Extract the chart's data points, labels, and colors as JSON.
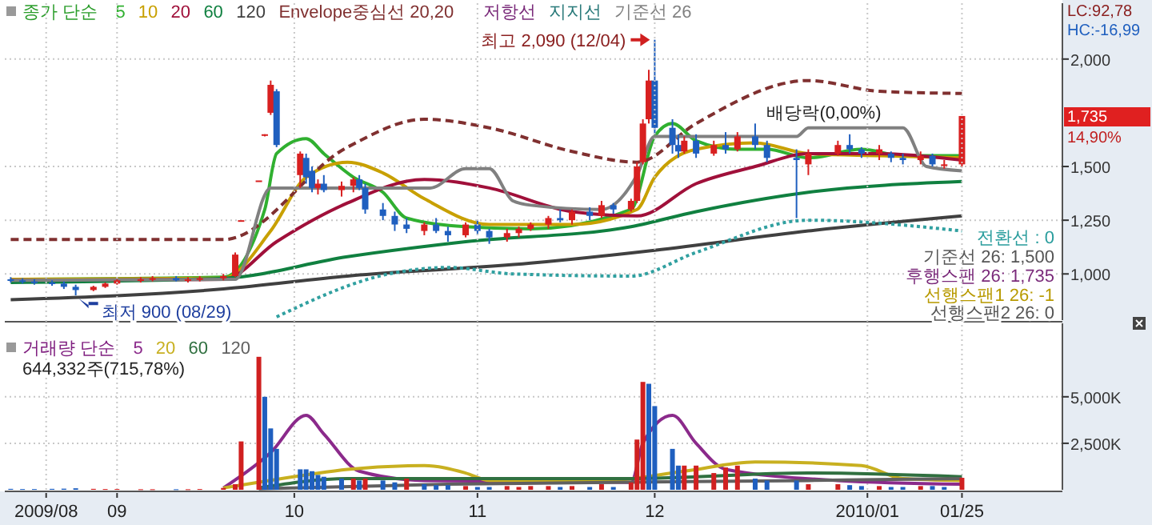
{
  "chart_data": [
    {
      "type": "candlestick",
      "legend_title": "종가 단순",
      "legend": "top left",
      "grid": "y",
      "tick_labels": "y",
      "xlim": [
        "2009-08-16",
        "2010-02-11"
      ],
      "ylim": [
        785,
        2260
      ],
      "yticks": [
        {
          "value": 1000,
          "label": "1,000"
        },
        {
          "value": 1250,
          "label": "1,250"
        },
        {
          "value": 1500,
          "label": "1,500"
        },
        {
          "value": 2000,
          "label": "2,000"
        }
      ],
      "x": [
        "2009-08-17",
        "2009-08-19",
        "2009-08-21",
        "2009-08-24",
        "2009-08-26",
        "2009-08-28",
        "2009-08-31",
        "2009-09-02",
        "2009-09-04",
        "2009-09-08",
        "2009-09-10",
        "2009-09-14",
        "2009-09-16",
        "2009-09-18",
        "2009-09-22",
        "2009-09-24",
        "2009-09-25",
        "2009-09-28",
        "2009-09-29",
        "2009-09-30",
        "2009-10-01",
        "2009-10-05",
        "2009-10-06",
        "2009-10-07",
        "2009-10-08",
        "2009-10-09",
        "2009-10-12",
        "2009-10-14",
        "2009-10-15",
        "2009-10-16",
        "2009-10-19",
        "2009-10-21",
        "2009-10-23",
        "2009-10-26",
        "2009-10-28",
        "2009-10-30",
        "2009-11-02",
        "2009-11-04",
        "2009-11-06",
        "2009-11-09",
        "2009-11-11",
        "2009-11-13",
        "2009-11-16",
        "2009-11-18",
        "2009-11-20",
        "2009-11-23",
        "2009-11-25",
        "2009-11-27",
        "2009-11-30",
        "2009-12-01",
        "2009-12-02",
        "2009-12-03",
        "2009-12-04",
        "2009-12-07",
        "2009-12-08",
        "2009-12-09",
        "2009-12-11",
        "2009-12-14",
        "2009-12-16",
        "2009-12-18",
        "2009-12-21",
        "2009-12-23",
        "2009-12-28",
        "2009-12-30",
        "2010-01-04",
        "2010-01-06",
        "2010-01-08",
        "2010-01-11",
        "2010-01-13",
        "2010-01-15",
        "2010-01-18",
        "2010-01-20",
        "2010-01-22",
        "2010-01-25"
      ],
      "ohlc": [
        [
          975,
          985,
          960,
          970
        ],
        [
          970,
          980,
          955,
          965
        ],
        [
          965,
          975,
          950,
          960
        ],
        [
          960,
          970,
          945,
          955
        ],
        [
          955,
          965,
          930,
          940
        ],
        [
          940,
          950,
          900,
          925
        ],
        [
          925,
          945,
          920,
          940
        ],
        [
          940,
          960,
          935,
          955
        ],
        [
          955,
          975,
          950,
          970
        ],
        [
          970,
          985,
          960,
          975
        ],
        [
          975,
          990,
          965,
          980
        ],
        [
          980,
          990,
          965,
          970
        ],
        [
          970,
          985,
          960,
          975
        ],
        [
          975,
          990,
          965,
          980
        ],
        [
          980,
          1000,
          970,
          990
        ],
        [
          990,
          1100,
          985,
          1090
        ],
        [
          1250,
          1250,
          1250,
          1250
        ],
        [
          1435,
          1435,
          1435,
          1435
        ],
        [
          1650,
          1650,
          1640,
          1650
        ],
        [
          1750,
          1900,
          1740,
          1880
        ],
        [
          1850,
          1860,
          1590,
          1600
        ],
        [
          1460,
          1570,
          1400,
          1560
        ],
        [
          1540,
          1560,
          1420,
          1450
        ],
        [
          1480,
          1500,
          1380,
          1400
        ],
        [
          1400,
          1440,
          1370,
          1420
        ],
        [
          1420,
          1460,
          1380,
          1390
        ],
        [
          1390,
          1430,
          1360,
          1410
        ],
        [
          1410,
          1450,
          1380,
          1440
        ],
        [
          1440,
          1460,
          1390,
          1400
        ],
        [
          1400,
          1420,
          1280,
          1300
        ],
        [
          1300,
          1330,
          1250,
          1270
        ],
        [
          1270,
          1290,
          1200,
          1230
        ],
        [
          1230,
          1260,
          1190,
          1210
        ],
        [
          1200,
          1240,
          1180,
          1230
        ],
        [
          1230,
          1260,
          1190,
          1200
        ],
        [
          1200,
          1220,
          1150,
          1180
        ],
        [
          1180,
          1240,
          1170,
          1230
        ],
        [
          1230,
          1250,
          1180,
          1200
        ],
        [
          1200,
          1210,
          1140,
          1170
        ],
        [
          1170,
          1210,
          1150,
          1190
        ],
        [
          1190,
          1220,
          1170,
          1210
        ],
        [
          1210,
          1240,
          1200,
          1230
        ],
        [
          1230,
          1270,
          1210,
          1260
        ],
        [
          1260,
          1300,
          1240,
          1250
        ],
        [
          1250,
          1300,
          1230,
          1290
        ],
        [
          1290,
          1310,
          1250,
          1270
        ],
        [
          1270,
          1340,
          1260,
          1320
        ],
        [
          1320,
          1330,
          1280,
          1300
        ],
        [
          1300,
          1350,
          1290,
          1340
        ],
        [
          1340,
          1520,
          1330,
          1500
        ],
        [
          1520,
          1720,
          1510,
          1700
        ],
        [
          1720,
          1950,
          1700,
          1900
        ],
        [
          1900,
          2090,
          1650,
          1680
        ],
        [
          1680,
          1720,
          1560,
          1600
        ],
        [
          1600,
          1650,
          1540,
          1570
        ],
        [
          1570,
          1640,
          1560,
          1620
        ],
        [
          1620,
          1650,
          1540,
          1560
        ],
        [
          1560,
          1620,
          1550,
          1600
        ],
        [
          1600,
          1660,
          1560,
          1580
        ],
        [
          1580,
          1660,
          1570,
          1640
        ],
        [
          1640,
          1700,
          1580,
          1600
        ],
        [
          1600,
          1620,
          1520,
          1540
        ],
        [
          1540,
          1580,
          1260,
          1530
        ],
        [
          1510,
          1580,
          1460,
          1560
        ],
        [
          1560,
          1620,
          1550,
          1600
        ],
        [
          1600,
          1650,
          1560,
          1580
        ],
        [
          1580,
          1590,
          1540,
          1560
        ],
        [
          1560,
          1600,
          1530,
          1580
        ],
        [
          1560,
          1570,
          1520,
          1540
        ],
        [
          1540,
          1560,
          1510,
          1530
        ],
        [
          1530,
          1570,
          1510,
          1550
        ],
        [
          1550,
          1560,
          1500,
          1510
        ],
        [
          1510,
          1530,
          1490,
          1510
        ],
        [
          1510,
          1735,
          1500,
          1735
        ]
      ],
      "series": [
        {
          "type": "line",
          "name": "5",
          "color": "#30b030",
          "x": [
            "2009-08-17",
            "2009-09-22",
            "2009-09-29",
            "2009-10-01",
            "2009-10-06",
            "2009-10-09",
            "2009-10-14",
            "2009-10-19",
            "2009-10-23",
            "2009-11-02",
            "2009-11-13",
            "2009-11-30",
            "2009-12-04",
            "2009-12-07",
            "2009-12-11",
            "2009-12-18",
            "2009-12-23",
            "2009-12-30",
            "2010-01-08",
            "2010-01-15",
            "2010-01-25"
          ],
          "values": [
            975,
            985,
            1300,
            1560,
            1630,
            1560,
            1450,
            1380,
            1260,
            1220,
            1210,
            1300,
            1640,
            1700,
            1620,
            1580,
            1580,
            1540,
            1580,
            1550,
            1550
          ]
        },
        {
          "type": "line",
          "name": "10",
          "color": "#c8a000",
          "x": [
            "2009-08-17",
            "2009-09-22",
            "2009-09-30",
            "2009-10-06",
            "2009-10-13",
            "2009-10-19",
            "2009-10-26",
            "2009-11-06",
            "2009-11-20",
            "2009-12-01",
            "2009-12-04",
            "2009-12-11",
            "2009-12-21",
            "2009-12-30",
            "2010-01-11",
            "2010-01-25"
          ],
          "values": [
            975,
            980,
            1200,
            1450,
            1520,
            1470,
            1350,
            1230,
            1230,
            1300,
            1450,
            1580,
            1610,
            1560,
            1550,
            1540
          ]
        },
        {
          "type": "line",
          "name": "20",
          "color": "#a0103a",
          "x": [
            "2009-08-17",
            "2009-09-22",
            "2009-10-01",
            "2009-10-13",
            "2009-10-26",
            "2009-11-06",
            "2009-11-20",
            "2009-12-01",
            "2009-12-11",
            "2009-12-21",
            "2009-12-30",
            "2010-01-11",
            "2010-01-25"
          ],
          "values": [
            970,
            975,
            1150,
            1330,
            1440,
            1400,
            1290,
            1270,
            1420,
            1500,
            1560,
            1560,
            1530
          ]
        },
        {
          "type": "line",
          "name": "60",
          "color": "#108040",
          "x": [
            "2009-08-17",
            "2009-09-22",
            "2009-10-13",
            "2009-11-02",
            "2009-11-30",
            "2009-12-11",
            "2009-12-30",
            "2010-01-25"
          ],
          "values": [
            960,
            980,
            1080,
            1150,
            1220,
            1290,
            1380,
            1430
          ]
        },
        {
          "type": "line",
          "name": "120",
          "color": "#404040",
          "x": [
            "2009-08-17",
            "2009-09-22",
            "2009-10-13",
            "2009-11-13",
            "2009-12-04",
            "2009-12-30",
            "2010-01-25"
          ],
          "values": [
            880,
            930,
            990,
            1050,
            1110,
            1200,
            1270
          ]
        },
        {
          "type": "line",
          "name": "Envelope중심선 20,20",
          "color": "#803030",
          "line_style": "dashed",
          "x": [
            "2009-08-17",
            "2009-09-22",
            "2009-10-13",
            "2009-10-26",
            "2009-11-06",
            "2009-11-20",
            "2009-12-01",
            "2009-12-11",
            "2009-12-30",
            "2010-01-11",
            "2010-01-25"
          ],
          "values": [
            1160,
            1160,
            1590,
            1720,
            1680,
            1570,
            1520,
            1700,
            1900,
            1850,
            1840
          ]
        },
        {
          "type": "line",
          "color": "#30a0a0",
          "line_style": "dotted",
          "x": [
            "2009-10-01",
            "2009-10-20",
            "2009-10-30",
            "2009-11-10",
            "2009-11-30",
            "2009-12-11",
            "2009-12-30",
            "2010-01-25"
          ],
          "values": [
            800,
            1000,
            1030,
            1000,
            990,
            1100,
            1250,
            1200
          ]
        },
        {
          "type": "line",
          "name": "기준선 26",
          "color": "#808080",
          "x": [
            "2009-08-17",
            "2009-09-24",
            "2009-09-30",
            "2009-10-27",
            "2009-11-02",
            "2009-11-06",
            "2009-11-10",
            "2009-11-13",
            "2009-11-25",
            "2009-12-01",
            "2009-12-04",
            "2009-12-28",
            "2009-12-30",
            "2010-01-15",
            "2010-01-19",
            "2010-01-25"
          ],
          "values": [
            970,
            975,
            1400,
            1400,
            1490,
            1490,
            1340,
            1320,
            1300,
            1460,
            1640,
            1640,
            1680,
            1680,
            1500,
            1480
          ]
        }
      ],
      "annotations": [
        {
          "text": "최고 2,090 (12/04)",
          "x": "2009-12-04",
          "y": 2090
        },
        {
          "text": "최저 900 (08/29)",
          "x": "2009-08-28",
          "y": 900
        },
        "배당락(0,00%)",
        "저항선",
        "지지선",
        "전환선 : 0",
        "기준선 26: 1,500",
        "후행스팬 26: 1,735",
        "선행스팬1 26: -1",
        "선행스팬2 26: 0",
        "LC:92,78",
        "HC:-16,99",
        "1,735",
        "14,90%"
      ]
    },
    {
      "type": "bar",
      "legend_title": "거래량 단순",
      "legend": "top left",
      "grid": true,
      "xlim": [
        "2009-08-16",
        "2010-02-11"
      ],
      "ylim": [
        0,
        8950
      ],
      "xticks": [
        {
          "value": "2009-08-23",
          "label": "2009/08"
        },
        {
          "value": "2009-09-04",
          "label": "09"
        },
        {
          "value": "2009-10-04",
          "label": "10"
        },
        {
          "value": "2009-11-04",
          "label": "11"
        },
        {
          "value": "2009-12-04",
          "label": "12"
        },
        {
          "value": "2010-01-09",
          "label": "2010/01"
        },
        {
          "value": "2010-01-25",
          "label": "01/25"
        }
      ],
      "yticks": [
        {
          "value": 2500,
          "label": "2,500K"
        },
        {
          "value": 5000,
          "label": "5,000K"
        }
      ],
      "x": [
        "2009-08-17",
        "2009-08-19",
        "2009-08-21",
        "2009-08-24",
        "2009-08-26",
        "2009-08-28",
        "2009-08-31",
        "2009-09-02",
        "2009-09-04",
        "2009-09-08",
        "2009-09-10",
        "2009-09-14",
        "2009-09-16",
        "2009-09-18",
        "2009-09-22",
        "2009-09-24",
        "2009-09-25",
        "2009-09-28",
        "2009-09-29",
        "2009-09-30",
        "2009-10-01",
        "2009-10-05",
        "2009-10-06",
        "2009-10-07",
        "2009-10-08",
        "2009-10-09",
        "2009-10-12",
        "2009-10-14",
        "2009-10-15",
        "2009-10-16",
        "2009-10-19",
        "2009-10-21",
        "2009-10-23",
        "2009-10-26",
        "2009-10-28",
        "2009-10-30",
        "2009-11-02",
        "2009-11-04",
        "2009-11-06",
        "2009-11-09",
        "2009-11-11",
        "2009-11-13",
        "2009-11-16",
        "2009-11-18",
        "2009-11-20",
        "2009-11-23",
        "2009-11-25",
        "2009-11-27",
        "2009-11-30",
        "2009-12-01",
        "2009-12-02",
        "2009-12-03",
        "2009-12-04",
        "2009-12-07",
        "2009-12-08",
        "2009-12-09",
        "2009-12-11",
        "2009-12-14",
        "2009-12-16",
        "2009-12-18",
        "2009-12-21",
        "2009-12-23",
        "2009-12-28",
        "2009-12-30",
        "2010-01-04",
        "2010-01-06",
        "2010-01-08",
        "2010-01-11",
        "2010-01-13",
        "2010-01-15",
        "2010-01-18",
        "2010-01-20",
        "2010-01-22",
        "2010-01-25"
      ],
      "series": [
        {
          "type": "bar",
          "values": [
            50,
            40,
            40,
            50,
            60,
            80,
            50,
            40,
            40,
            30,
            30,
            30,
            30,
            40,
            100,
            300,
            2600,
            7150,
            5000,
            3300,
            2200,
            1100,
            1100,
            1000,
            800,
            700,
            600,
            600,
            500,
            600,
            500,
            400,
            600,
            300,
            250,
            250,
            200,
            150,
            150,
            200,
            150,
            200,
            200,
            150,
            200,
            150,
            300,
            150,
            400,
            2700,
            5800,
            5700,
            4500,
            2200,
            1300,
            1300,
            1300,
            900,
            1200,
            1300,
            600,
            500,
            500,
            300,
            300,
            250,
            200,
            200,
            150,
            150,
            200,
            200,
            150,
            644
          ],
          "colors": [
            "#1f5fbf",
            "#1f5fbf",
            "#1f5fbf",
            "#1f5fbf",
            "#1f5fbf",
            "#1f5fbf",
            "#d02020",
            "#d02020",
            "#d02020",
            "#d02020",
            "#d02020",
            "#1f5fbf",
            "#d02020",
            "#d02020",
            "#d02020",
            "#d02020",
            "#d02020",
            "#d02020",
            "#1f5fbf",
            "#1f5fbf",
            "#1f5fbf",
            "#1f5fbf",
            "#1f5fbf",
            "#1f5fbf",
            "#1f5fbf",
            "#1f5fbf",
            "#1f5fbf",
            "#d02020",
            "#1f5fbf",
            "#d02020",
            "#1f5fbf",
            "#1f5fbf",
            "#d02020",
            "#1f5fbf",
            "#1f5fbf",
            "#1f5fbf",
            "#d02020",
            "#1f5fbf",
            "#1f5fbf",
            "#d02020",
            "#d02020",
            "#d02020",
            "#d02020",
            "#1f5fbf",
            "#d02020",
            "#1f5fbf",
            "#d02020",
            "#1f5fbf",
            "#d02020",
            "#d02020",
            "#d02020",
            "#1f5fbf",
            "#1f5fbf",
            "#1f5fbf",
            "#1f5fbf",
            "#d02020",
            "#d02020",
            "#d02020",
            "#d02020",
            "#d02020",
            "#1f5fbf",
            "#1f5fbf",
            "#1f5fbf",
            "#d02020",
            "#d02020",
            "#1f5fbf",
            "#1f5fbf",
            "#d02020",
            "#1f5fbf",
            "#1f5fbf",
            "#d02020",
            "#1f5fbf",
            "#1f5fbf",
            "#d02020"
          ]
        },
        {
          "type": "line",
          "name": "5",
          "color": "#8b2a8b",
          "x": [
            "2009-09-22",
            "2009-09-30",
            "2009-10-06",
            "2009-10-09",
            "2009-10-15",
            "2009-10-26",
            "2009-11-30",
            "2009-12-02",
            "2009-12-07",
            "2009-12-11",
            "2009-12-16",
            "2010-01-04",
            "2010-01-25"
          ],
          "values": [
            100,
            2000,
            4000,
            3000,
            1000,
            500,
            400,
            2500,
            4000,
            2500,
            1100,
            500,
            300
          ]
        },
        {
          "type": "line",
          "name": "20",
          "color": "#c8b020",
          "x": [
            "2009-09-22",
            "2009-10-06",
            "2009-10-13",
            "2009-10-26",
            "2009-11-02",
            "2009-11-06",
            "2009-11-26",
            "2009-12-09",
            "2009-12-21",
            "2010-01-08",
            "2010-01-15",
            "2010-01-25"
          ],
          "values": [
            100,
            800,
            1100,
            1300,
            900,
            500,
            500,
            1000,
            1500,
            1300,
            600,
            500
          ]
        },
        {
          "type": "line",
          "name": "60",
          "color": "#307040",
          "x": [
            "2009-09-28",
            "2009-10-13",
            "2009-11-30",
            "2009-12-30",
            "2010-01-25"
          ],
          "values": [
            100,
            600,
            600,
            900,
            700
          ]
        },
        {
          "type": "line",
          "name": "120",
          "color": "#606060",
          "x": [
            "2009-09-28",
            "2009-10-30",
            "2009-12-30",
            "2010-01-25"
          ],
          "values": [
            50,
            300,
            500,
            600
          ]
        }
      ],
      "annotations": [
        "644,332주(715,78%)"
      ]
    }
  ]
}
